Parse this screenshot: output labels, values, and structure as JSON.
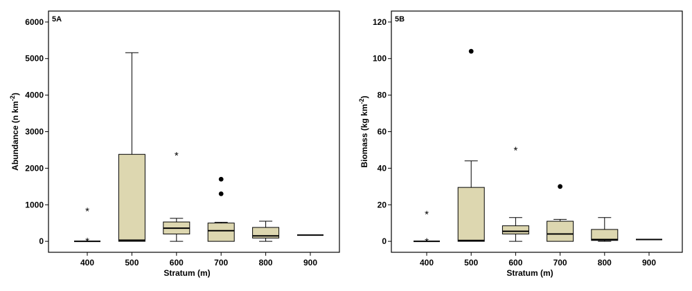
{
  "chart_data": [
    {
      "type": "boxplot",
      "panel_label": "5A",
      "xlabel": "Stratum (m)",
      "ylabel_main": "Abundance (n km",
      "ylabel_sup": "-2",
      "ylabel_close": ")",
      "ylim": [
        -300,
        6300
      ],
      "yticks": [
        0,
        1000,
        2000,
        3000,
        4000,
        5000,
        6000
      ],
      "ytick_labels": [
        "0",
        "1000",
        "2000",
        "3000",
        "4000",
        "5000",
        "6000"
      ],
      "categories": [
        "400",
        "500",
        "600",
        "700",
        "800",
        "900"
      ],
      "box_color": "#ddd7b0",
      "boxes": [
        {
          "min": 0,
          "q1": 0,
          "median": 0,
          "q3": 0,
          "max": 0,
          "outliers": [],
          "extremes": [
            60,
            880
          ]
        },
        {
          "min": 0,
          "q1": 0,
          "median": 30,
          "q3": 2380,
          "max": 5160,
          "outliers": [],
          "extremes": []
        },
        {
          "min": 0,
          "q1": 200,
          "median": 360,
          "q3": 530,
          "max": 630,
          "outliers": [],
          "extremes": [
            2400
          ]
        },
        {
          "min": 0,
          "q1": 0,
          "median": 290,
          "q3": 500,
          "max": 520,
          "outliers": [
            1300,
            1700
          ],
          "extremes": []
        },
        {
          "min": 0,
          "q1": 90,
          "median": 150,
          "q3": 380,
          "max": 550,
          "outliers": [],
          "extremes": []
        },
        {
          "min": 170,
          "q1": 170,
          "median": 170,
          "q3": 170,
          "max": 170,
          "outliers": [],
          "extremes": []
        }
      ]
    },
    {
      "type": "boxplot",
      "panel_label": "5B",
      "xlabel": "Stratum (m)",
      "ylabel_main": "Biomass (kg km",
      "ylabel_sup": "-2",
      "ylabel_close": ")",
      "ylim": [
        -6,
        126
      ],
      "yticks": [
        0,
        20,
        40,
        60,
        80,
        100,
        120
      ],
      "ytick_labels": [
        "0",
        "20",
        "40",
        "60",
        "80",
        "100",
        "120"
      ],
      "categories": [
        "400",
        "500",
        "600",
        "700",
        "800",
        "900"
      ],
      "box_color": "#ddd7b0",
      "boxes": [
        {
          "min": 0,
          "q1": 0,
          "median": 0,
          "q3": 0,
          "max": 0,
          "outliers": [],
          "extremes": [
            1,
            16
          ]
        },
        {
          "min": 0,
          "q1": 0,
          "median": 0.5,
          "q3": 29.5,
          "max": 44,
          "outliers": [
            104
          ],
          "extremes": []
        },
        {
          "min": 0,
          "q1": 4,
          "median": 5.5,
          "q3": 8.5,
          "max": 13,
          "outliers": [],
          "extremes": [
            51
          ]
        },
        {
          "min": 0,
          "q1": 0,
          "median": 4,
          "q3": 11,
          "max": 12,
          "outliers": [
            30
          ],
          "extremes": []
        },
        {
          "min": 0,
          "q1": 0.5,
          "median": 1,
          "q3": 6.5,
          "max": 13,
          "outliers": [],
          "extremes": []
        },
        {
          "min": 1,
          "q1": 1,
          "median": 1,
          "q3": 1,
          "max": 1,
          "outliers": [],
          "extremes": []
        }
      ]
    }
  ]
}
